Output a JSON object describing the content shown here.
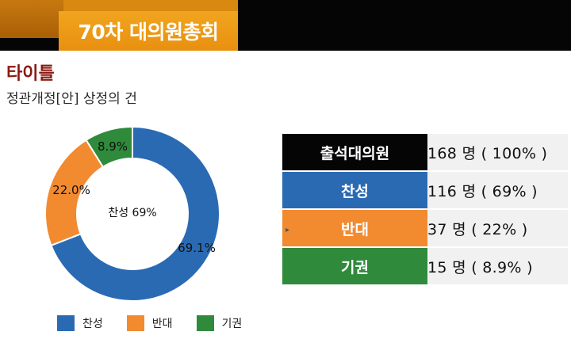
{
  "header": {
    "title": "70차 대의원총회"
  },
  "heading": "타이틀",
  "subheading": "정관개정[안] 상정의 건",
  "chart_data": {
    "type": "pie",
    "donut": true,
    "center_label": "찬성 69%",
    "slices": [
      {
        "name": "찬성",
        "value": 69.1,
        "label": "69.1%",
        "color": "#2a6ab3"
      },
      {
        "name": "반대",
        "value": 22.0,
        "label": "22.0%",
        "color": "#f28a30"
      },
      {
        "name": "기권",
        "value": 8.9,
        "label": "8.9%",
        "color": "#2f8a3c"
      }
    ],
    "legend_position": "bottom"
  },
  "legend": [
    {
      "label": "찬성",
      "color": "#2a6ab3"
    },
    {
      "label": "반대",
      "color": "#f28a30"
    },
    {
      "label": "기권",
      "color": "#2f8a3c"
    }
  ],
  "table": [
    {
      "label": "출석대의원",
      "value": "168 명 ( 100% )",
      "color": "#050505"
    },
    {
      "label": "찬성",
      "value": "116 명 ( 69% )",
      "color": "#2a6ab3"
    },
    {
      "label": "반대",
      "value": "37 명 ( 22% )",
      "color": "#f28a30"
    },
    {
      "label": "기권",
      "value": "15 명 ( 8.9% )",
      "color": "#2f8a3c"
    }
  ]
}
